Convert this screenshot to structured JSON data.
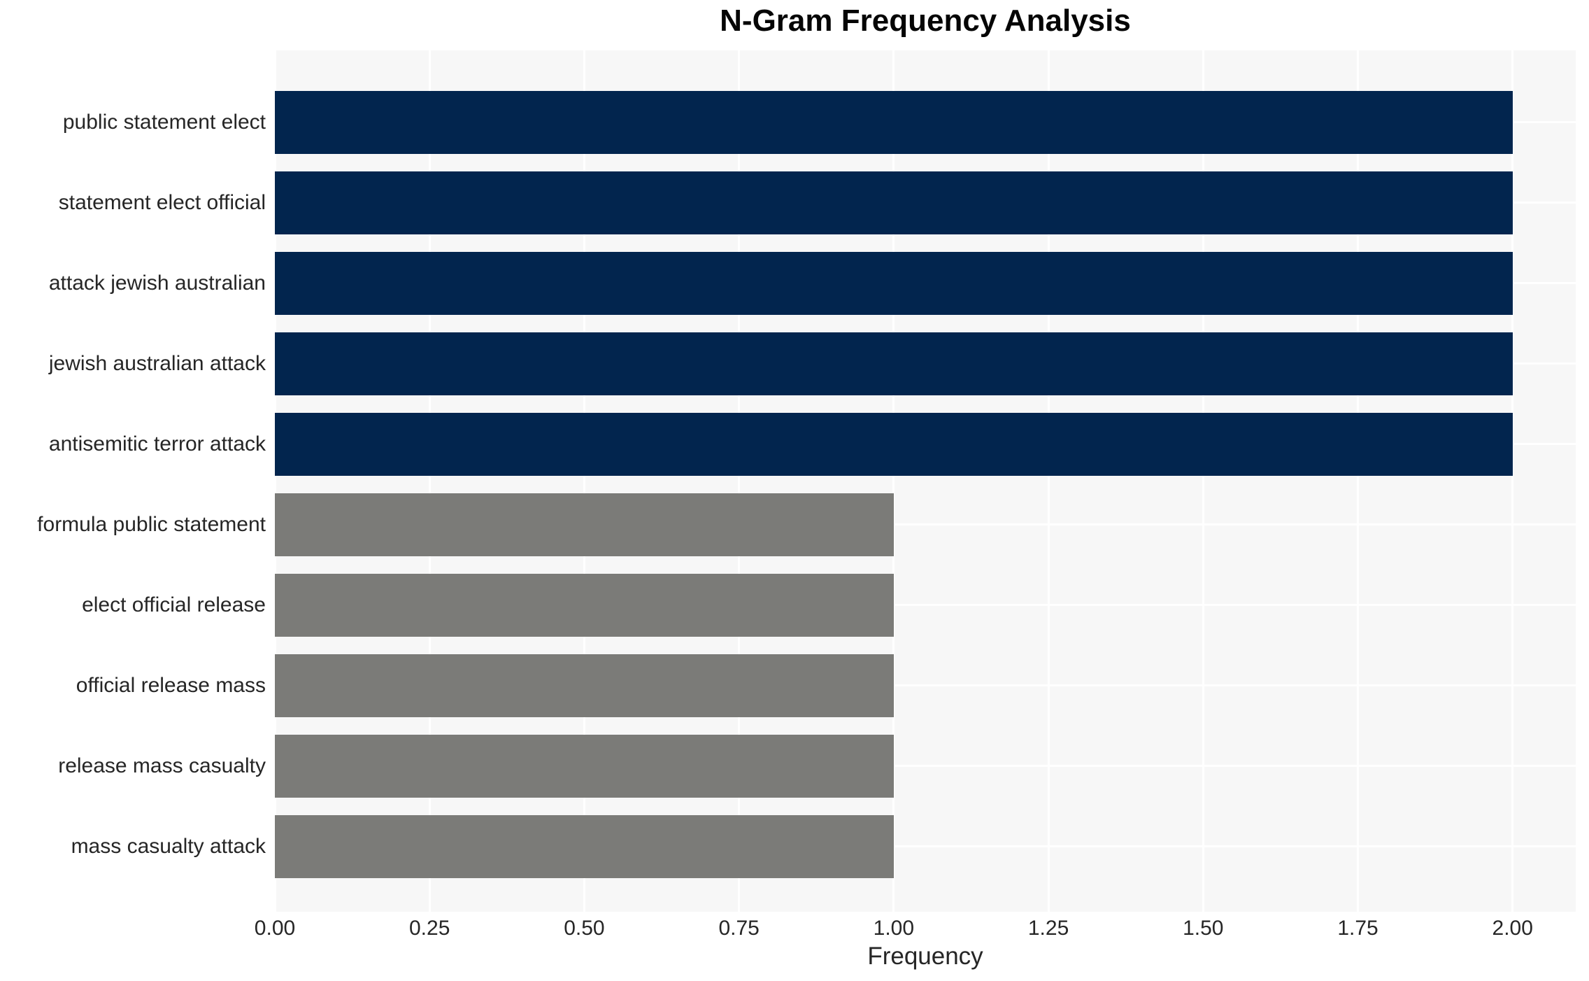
{
  "chart_data": {
    "type": "bar",
    "orientation": "horizontal",
    "title": "N-Gram Frequency Analysis",
    "xlabel": "Frequency",
    "ylabel": "",
    "categories": [
      "public statement elect",
      "statement elect official",
      "attack jewish australian",
      "jewish australian attack",
      "antisemitic terror attack",
      "formula public statement",
      "elect official release",
      "official release mass",
      "release mass casualty",
      "mass casualty attack"
    ],
    "values": [
      2,
      2,
      2,
      2,
      2,
      1,
      1,
      1,
      1,
      1
    ],
    "bar_colors": [
      "#02254e",
      "#02254e",
      "#02254e",
      "#02254e",
      "#02254e",
      "#7b7b78",
      "#7b7b78",
      "#7b7b78",
      "#7b7b78",
      "#7b7b78"
    ],
    "xticks": [
      0,
      0.25,
      0.5,
      0.75,
      1.0,
      1.25,
      1.5,
      1.75,
      2.0
    ],
    "xtick_labels": [
      "0.00",
      "0.25",
      "0.50",
      "0.75",
      "1.00",
      "1.25",
      "1.50",
      "1.75",
      "2.00"
    ],
    "xlim": [
      0,
      2.102
    ],
    "grid": true,
    "legend": false,
    "colors": {
      "bar_high": "#02254e",
      "bar_low": "#7b7b78",
      "plot_background": "#f7f7f7",
      "gridline": "#ffffff",
      "figure_background": "#ffffff",
      "text": "#262626",
      "title_text": "#050505"
    }
  }
}
